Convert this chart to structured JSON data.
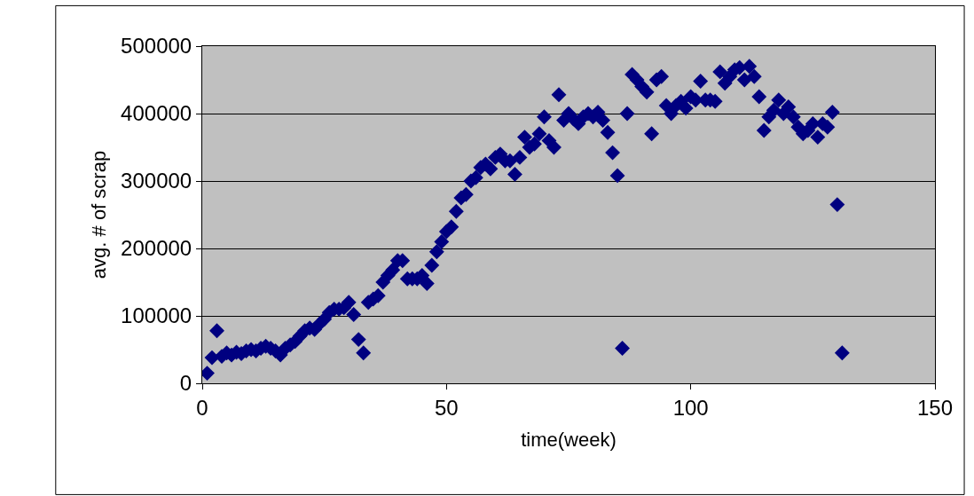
{
  "chart_data": {
    "type": "scatter",
    "xlabel": "time(week)",
    "ylabel": "avg. # of scrap",
    "x": [
      1,
      2,
      3,
      4,
      5,
      6,
      7,
      8,
      9,
      10,
      11,
      12,
      13,
      14,
      15,
      16,
      17,
      18,
      19,
      20,
      21,
      22,
      23,
      24,
      25,
      26,
      27,
      28,
      29,
      30,
      31,
      32,
      33,
      34,
      35,
      36,
      37,
      38,
      39,
      40,
      41,
      42,
      43,
      44,
      45,
      46,
      47,
      48,
      49,
      50,
      51,
      52,
      53,
      54,
      55,
      56,
      57,
      58,
      59,
      60,
      61,
      62,
      63,
      64,
      65,
      66,
      67,
      68,
      69,
      70,
      71,
      72,
      73,
      74,
      75,
      76,
      77,
      78,
      79,
      80,
      81,
      82,
      83,
      84,
      85,
      86,
      87,
      88,
      89,
      90,
      91,
      92,
      93,
      94,
      95,
      96,
      97,
      98,
      99,
      100,
      101,
      102,
      103,
      104,
      105,
      106,
      107,
      108,
      109,
      110,
      111,
      112,
      113,
      114,
      115,
      116,
      117,
      118,
      119,
      120,
      121,
      122,
      123,
      124,
      125,
      126,
      127,
      128,
      129,
      130,
      131
    ],
    "series": [
      {
        "color": "#000080",
        "values": [
          15000,
          38000,
          78000,
          40000,
          45000,
          42000,
          46000,
          44000,
          48000,
          50000,
          48000,
          52000,
          55000,
          52000,
          48000,
          42000,
          52000,
          57000,
          62000,
          70000,
          78000,
          82000,
          80000,
          88000,
          95000,
          105000,
          110000,
          110000,
          112000,
          120000,
          102000,
          65000,
          45000,
          120000,
          125000,
          130000,
          150000,
          160000,
          168000,
          182000,
          182000,
          155000,
          155000,
          155000,
          160000,
          148000,
          175000,
          195000,
          210000,
          225000,
          232000,
          255000,
          275000,
          280000,
          300000,
          305000,
          320000,
          325000,
          318000,
          335000,
          340000,
          330000,
          330000,
          310000,
          335000,
          365000,
          350000,
          355000,
          370000,
          395000,
          360000,
          350000,
          428000,
          390000,
          400000,
          392000,
          385000,
          395000,
          400000,
          395000,
          402000,
          390000,
          372000,
          342000,
          308000,
          52000,
          400000,
          458000,
          450000,
          440000,
          432000,
          370000,
          450000,
          455000,
          412000,
          400000,
          412000,
          418000,
          408000,
          425000,
          420000,
          448000,
          420000,
          420000,
          418000,
          462000,
          445000,
          455000,
          465000,
          468000,
          450000,
          470000,
          455000,
          425000,
          375000,
          395000,
          405000,
          420000,
          400000,
          410000,
          395000,
          380000,
          370000,
          375000,
          385000,
          365000,
          385000,
          380000,
          402000,
          265000,
          45000
        ]
      }
    ],
    "xlim": [
      0,
      150
    ],
    "xticks": [
      0,
      50,
      100,
      150
    ],
    "ylim": [
      0,
      500000
    ],
    "yticks": [
      0,
      100000,
      200000,
      300000,
      400000,
      500000
    ],
    "grid": "y",
    "marker": "diamond"
  }
}
